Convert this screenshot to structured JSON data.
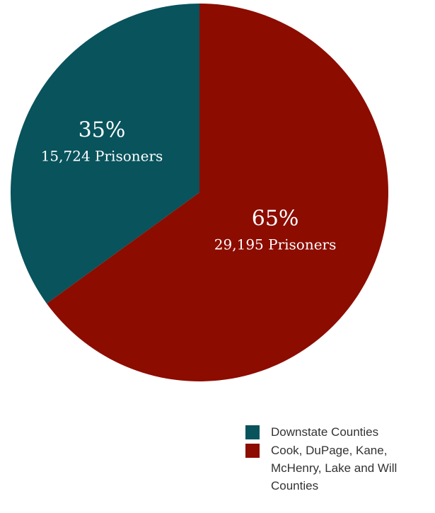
{
  "chart_data": {
    "type": "pie",
    "slices": [
      {
        "label": "Downstate Counties",
        "percent": 35,
        "pct_label": "35%",
        "count_label": "15,724 Prisoners",
        "value": 15724,
        "color": "#08535c"
      },
      {
        "label": "Cook, DuPage, Kane, McHenry, Lake and Will Counties",
        "percent": 65,
        "pct_label": "65%",
        "count_label": "29,195 Prisoners",
        "value": 29195,
        "color": "#8c0c00"
      }
    ],
    "start_angle_deg": 0,
    "direction": "counterclockwise",
    "legend": {
      "placement": "bottom-right",
      "entries": [
        {
          "label": "Downstate Counties",
          "color": "#08535c"
        },
        {
          "label": "Cook, DuPage, Kane, McHenry, Lake and Will Counties",
          "color": "#8c0c00"
        }
      ]
    }
  }
}
